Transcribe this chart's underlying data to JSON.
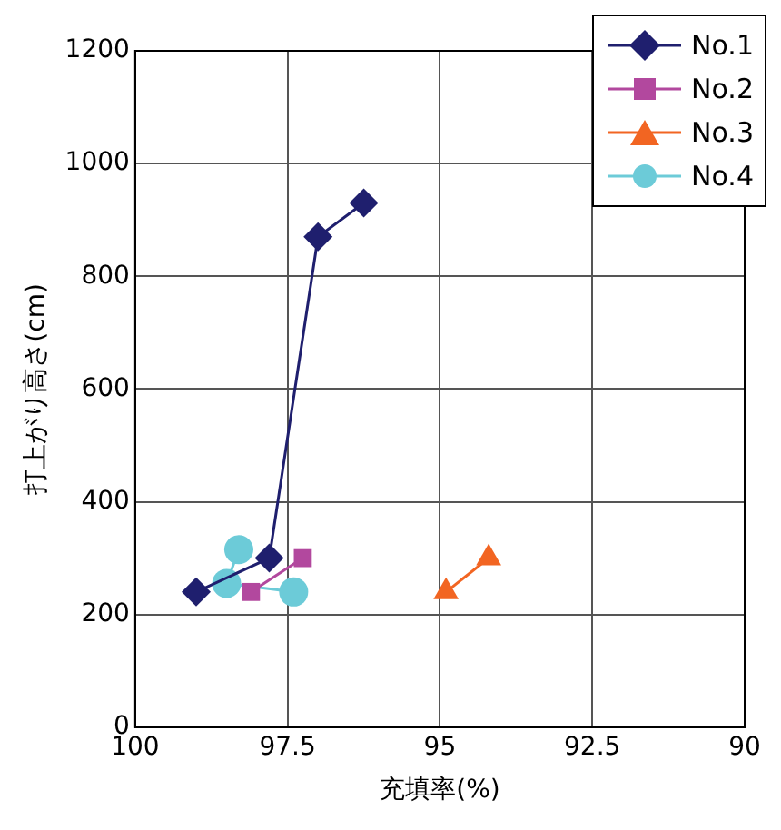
{
  "chart_data": {
    "type": "line",
    "xlabel": "充填率(%)",
    "ylabel": "打上がり高さ(cm)",
    "xlim": [
      100,
      90
    ],
    "xticks": [
      100,
      97.5,
      95,
      92.5,
      90
    ],
    "ylim": [
      0,
      1200
    ],
    "yticks": [
      0,
      200,
      400,
      600,
      800,
      1000,
      1200
    ],
    "grid": true,
    "legend": "top right",
    "line_style": "solid",
    "series": [
      {
        "name": "No.1",
        "color": "#1f1f6e",
        "marker": "diamond",
        "x": [
          99.0,
          97.8,
          97.0,
          96.25
        ],
        "values": [
          240,
          300,
          870,
          930
        ]
      },
      {
        "name": "No.2",
        "color": "#b2489e",
        "marker": "square",
        "x": [
          98.1,
          97.25
        ],
        "values": [
          240,
          300
        ]
      },
      {
        "name": "No.3",
        "color": "#f26522",
        "marker": "triangle",
        "x": [
          94.9,
          94.2
        ],
        "values": [
          240,
          300
        ]
      },
      {
        "name": "No.4",
        "color": "#6ccbd8",
        "marker": "circle",
        "x": [
          98.3,
          98.5,
          97.4
        ],
        "values": [
          315,
          255,
          240
        ]
      }
    ]
  }
}
